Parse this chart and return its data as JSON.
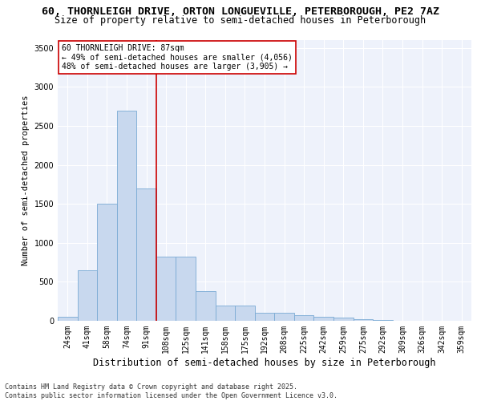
{
  "title_line1": "60, THORNLEIGH DRIVE, ORTON LONGUEVILLE, PETERBOROUGH, PE2 7AZ",
  "title_line2": "Size of property relative to semi-detached houses in Peterborough",
  "xlabel": "Distribution of semi-detached houses by size in Peterborough",
  "ylabel": "Number of semi-detached properties",
  "footnote": "Contains HM Land Registry data © Crown copyright and database right 2025.\nContains public sector information licensed under the Open Government Licence v3.0.",
  "categories": [
    "24sqm",
    "41sqm",
    "58sqm",
    "74sqm",
    "91sqm",
    "108sqm",
    "125sqm",
    "141sqm",
    "158sqm",
    "175sqm",
    "192sqm",
    "208sqm",
    "225sqm",
    "242sqm",
    "259sqm",
    "275sqm",
    "292sqm",
    "309sqm",
    "326sqm",
    "342sqm",
    "359sqm"
  ],
  "values": [
    55,
    650,
    1500,
    2700,
    1700,
    820,
    820,
    380,
    200,
    200,
    100,
    100,
    75,
    55,
    40,
    25,
    10,
    5,
    2,
    1,
    1
  ],
  "bar_color": "#c8d8ee",
  "bar_edge_color": "#7aaad4",
  "vline_color": "#cc0000",
  "vline_index": 4.5,
  "annotation_text": "60 THORNLEIGH DRIVE: 87sqm\n← 49% of semi-detached houses are smaller (4,056)\n48% of semi-detached houses are larger (3,905) →",
  "annotation_box_color": "#cc0000",
  "ylim": [
    0,
    3600
  ],
  "yticks": [
    0,
    500,
    1000,
    1500,
    2000,
    2500,
    3000,
    3500
  ],
  "bg_color": "#eef2fb",
  "grid_color": "#ffffff",
  "title_fontsize": 9.5,
  "subtitle_fontsize": 8.5,
  "xlabel_fontsize": 8.5,
  "ylabel_fontsize": 7.5,
  "tick_fontsize": 7,
  "annot_fontsize": 7,
  "footnote_fontsize": 6
}
